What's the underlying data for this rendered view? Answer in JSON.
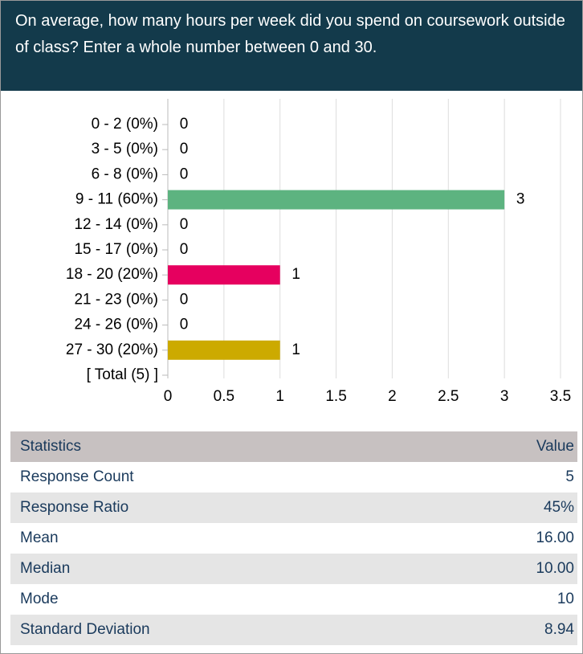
{
  "chart_data": {
    "type": "bar",
    "orientation": "horizontal",
    "title": "On average, how many hours per week did you spend on coursework outside of class? Enter a whole number between 0 and 30.",
    "categories": [
      "0 - 2 (0%)",
      "3 - 5 (0%)",
      "6 - 8 (0%)",
      "9 - 11 (60%)",
      "12 - 14 (0%)",
      "15 - 17 (0%)",
      "18 - 20 (20%)",
      "21 - 23 (0%)",
      "24 - 26 (0%)",
      "27 - 30 (20%)",
      "[ Total (5) ]"
    ],
    "values": [
      0,
      0,
      0,
      3,
      0,
      0,
      1,
      0,
      0,
      1,
      null
    ],
    "colors": [
      null,
      null,
      null,
      "#5db380",
      null,
      null,
      "#e6005f",
      null,
      null,
      "#ccaa00",
      null
    ],
    "xlim": [
      0,
      3.5
    ],
    "xticks": [
      0,
      0.5,
      1,
      1.5,
      2,
      2.5,
      3,
      3.5
    ],
    "grid": true
  },
  "table": {
    "header": [
      "Statistics",
      "Value"
    ],
    "rows": [
      [
        "Response Count",
        "5"
      ],
      [
        "Response Ratio",
        "45%"
      ],
      [
        "Mean",
        "16.00"
      ],
      [
        "Median",
        "10.00"
      ],
      [
        "Mode",
        "10"
      ],
      [
        "Standard Deviation",
        "8.94"
      ]
    ]
  }
}
